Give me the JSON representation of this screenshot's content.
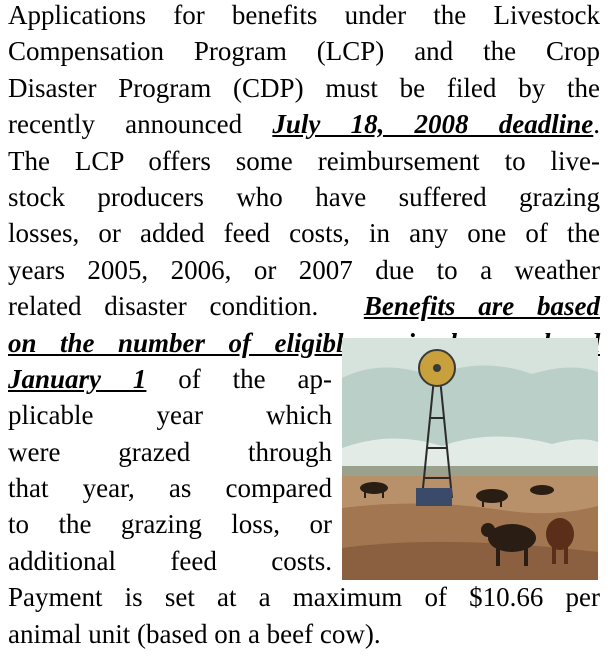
{
  "paragraph": {
    "lines": [
      [
        {
          "text": "Applications for benefits under the Livestock",
          "emphasis": false
        }
      ],
      [
        {
          "text": "Compensation Program (LCP) and the Crop",
          "emphasis": false
        }
      ],
      [
        {
          "text": "Disaster Program (CDP) must be filed by the",
          "emphasis": false
        }
      ],
      [
        {
          "text": "recently announced ",
          "emphasis": false
        },
        {
          "text": "July 18, 2008 deadline",
          "emphasis": true
        },
        {
          "text": ".",
          "emphasis": false
        }
      ],
      [
        {
          "text": "The LCP offers some reimbursement to live-",
          "emphasis": false
        }
      ],
      [
        {
          "text": "stock producers who have suffered grazing",
          "emphasis": false
        }
      ],
      [
        {
          "text": "losses, or added feed costs, in any one of the",
          "emphasis": false
        }
      ],
      [
        {
          "text": "years 2005, 2006, or 2007 due to a weather",
          "emphasis": false
        }
      ],
      [
        {
          "text": "related disaster condition.  ",
          "emphasis": false
        },
        {
          "text": "Benefits are based",
          "emphasis": true
        }
      ],
      [
        {
          "text": "on the number of eligible animals on hand",
          "emphasis": true
        }
      ],
      [
        {
          "text": "January 1",
          "emphasis": true
        },
        {
          "text": " of the ap-",
          "emphasis": false
        }
      ],
      [
        {
          "text": "plicable year which",
          "emphasis": false
        }
      ],
      [
        {
          "text": "were grazed through",
          "emphasis": false
        }
      ],
      [
        {
          "text": "that year, as compared",
          "emphasis": false
        }
      ],
      [
        {
          "text": "to the grazing loss, or",
          "emphasis": false
        }
      ],
      [
        {
          "text": "additional feed costs.",
          "emphasis": false
        }
      ],
      [
        {
          "text": "Payment is set at a maximum of $10.66 per",
          "emphasis": false
        }
      ],
      [
        {
          "text": "animal unit (based on a beef cow).",
          "emphasis": false
        }
      ]
    ]
  }
}
